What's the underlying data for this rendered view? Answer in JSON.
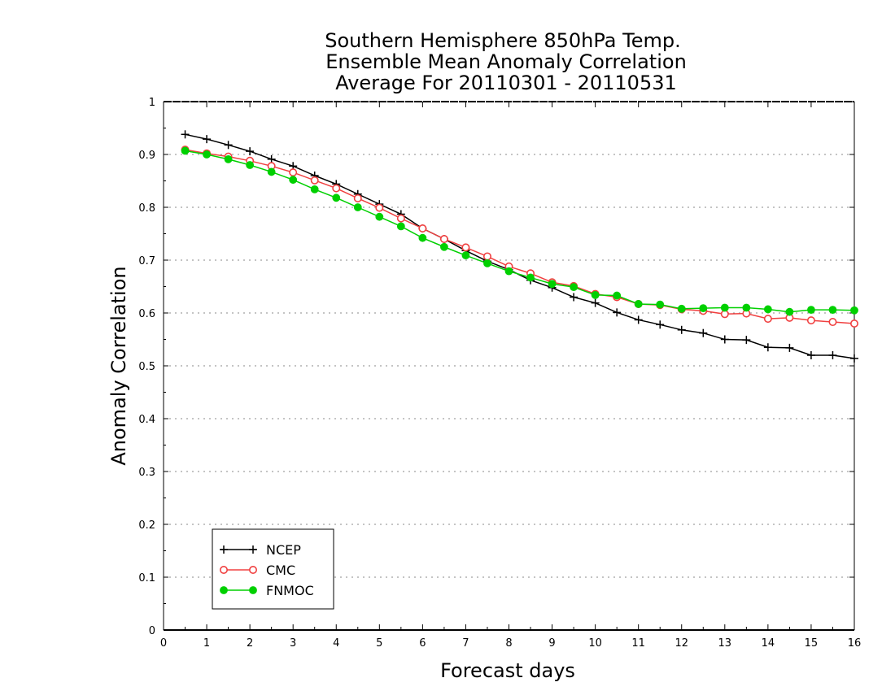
{
  "chart_data": {
    "type": "line",
    "title": [
      "Southern Hemisphere 850hPa Temp.",
      "Ensemble Mean Anomaly Correlation",
      "Average For 20110301 - 20110531"
    ],
    "xlabel": "Forecast days",
    "ylabel": "Anomaly Correlation",
    "xlim": [
      0,
      16
    ],
    "ylim": [
      0,
      1
    ],
    "xticks": [
      "0",
      "1",
      "2",
      "3",
      "4",
      "5",
      "6",
      "7",
      "8",
      "9",
      "10",
      "11",
      "12",
      "13",
      "14",
      "15",
      "16"
    ],
    "yticks": [
      "0",
      "0.1",
      "0.2",
      "0.3",
      "0.4",
      "0.5",
      "0.6",
      "0.7",
      "0.8",
      "0.9",
      "1"
    ],
    "grid": "horizontal-dotted",
    "legend_position": "bottom-left",
    "x": [
      0.5,
      1,
      1.5,
      2,
      2.5,
      3,
      3.5,
      4,
      4.5,
      5,
      5.5,
      6,
      6.5,
      7,
      7.5,
      8,
      8.5,
      9,
      9.5,
      10,
      10.5,
      11,
      11.5,
      12,
      12.5,
      13,
      13.5,
      14,
      14.5,
      15,
      15.5,
      16
    ],
    "series": [
      {
        "name": "NCEP",
        "color": "#000000",
        "marker": "plus",
        "values": [
          0.938,
          0.929,
          0.918,
          0.906,
          0.891,
          0.878,
          0.86,
          0.844,
          0.825,
          0.806,
          0.787,
          0.76,
          0.74,
          0.718,
          0.698,
          0.682,
          0.662,
          0.648,
          0.63,
          0.619,
          0.601,
          0.587,
          0.578,
          0.568,
          0.562,
          0.55,
          0.549,
          0.535,
          0.534,
          0.52,
          0.52,
          0.514
        ]
      },
      {
        "name": "CMC",
        "color": "#f04040",
        "marker": "open-circle",
        "values": [
          0.909,
          0.902,
          0.896,
          0.888,
          0.878,
          0.866,
          0.851,
          0.836,
          0.817,
          0.799,
          0.779,
          0.76,
          0.74,
          0.724,
          0.707,
          0.688,
          0.675,
          0.658,
          0.651,
          0.636,
          0.63,
          0.617,
          0.615,
          0.607,
          0.604,
          0.598,
          0.599,
          0.589,
          0.591,
          0.586,
          0.583,
          0.58
        ]
      },
      {
        "name": "FNMOC",
        "color": "#00d000",
        "marker": "filled-circle",
        "values": [
          0.907,
          0.9,
          0.891,
          0.88,
          0.867,
          0.852,
          0.834,
          0.818,
          0.8,
          0.782,
          0.764,
          0.742,
          0.725,
          0.709,
          0.694,
          0.679,
          0.667,
          0.655,
          0.649,
          0.634,
          0.633,
          0.617,
          0.616,
          0.608,
          0.609,
          0.61,
          0.61,
          0.607,
          0.602,
          0.606,
          0.606,
          0.605
        ]
      }
    ]
  }
}
